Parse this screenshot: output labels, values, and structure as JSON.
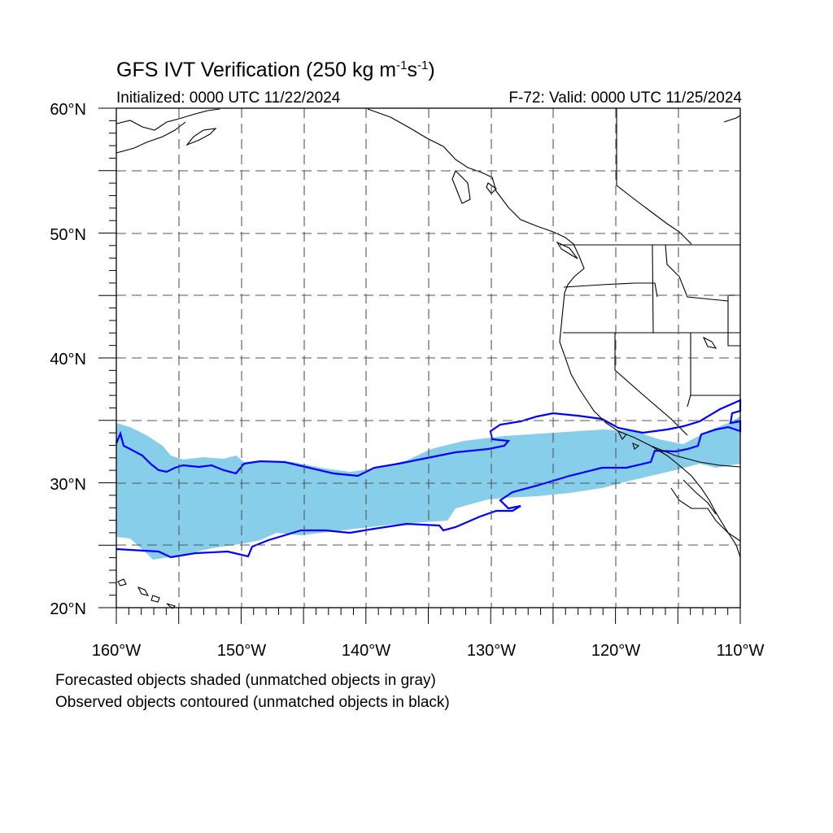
{
  "title_main": "GFS IVT Verification (250 kg m",
  "title_sup1": "-1",
  "title_mid": "s",
  "title_sup2": "-1",
  "title_end": ")",
  "initialized": "Initialized: 0000 UTC 11/22/2024",
  "valid": "F-72: Valid: 0000 UTC 11/25/2024",
  "note_forecast": "Forecasted objects shaded (unmatched objects in gray)",
  "note_observed": "Observed objects contoured (unmatched objects in black)",
  "map": {
    "lon_range": [
      -160,
      -110
    ],
    "lat_range": [
      20,
      60
    ],
    "lon_labels": [
      "160°W",
      "150°W",
      "140°W",
      "130°W",
      "120°W",
      "110°W"
    ],
    "lat_labels": [
      "60°N",
      "50°N",
      "40°N",
      "30°N",
      "20°N"
    ],
    "grid_interval_deg": 5,
    "colors": {
      "forecast_fill": "#87ceeb",
      "observed_contour": "#0000ff",
      "coastline": "#000000",
      "grid": "#555555"
    }
  }
}
